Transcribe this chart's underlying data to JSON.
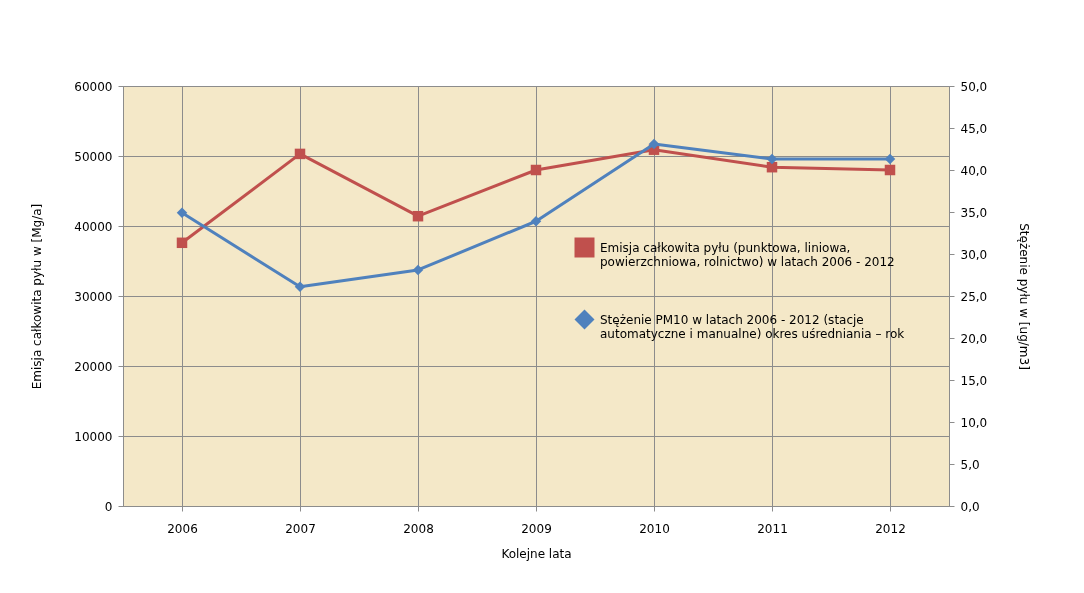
{
  "chart_data": {
    "type": "line",
    "xlabel": "Kolejne lata",
    "ylabel": "Emisja całkowita pyłu w [Mg/a]",
    "y2label": "Stężenie pyłu w  [ug/m3]",
    "categories": [
      "2006",
      "2007",
      "2008",
      "2009",
      "2010",
      "2011",
      "2012"
    ],
    "series": [
      {
        "name": "Emisja całkowita pyłu (punktowa,  liniowa,\npowierzchniowa, rolnictwo) w latach 2006 - 2012",
        "color": "#c0504d",
        "marker": "square",
        "values": [
          37600,
          50300,
          41400,
          48000,
          50900,
          48400,
          48000
        ]
      },
      {
        "name": "Stężenie PM10 w latach 2006 - 2012 (stacje\nautomatyczne  i manualne) okres uśredniania – rok",
        "color": "#4f81bd",
        "marker": "diamond",
        "axis": "y2",
        "values": [
          34.9,
          26.1,
          28.1,
          33.9,
          43.1,
          41.3,
          41.3
        ]
      }
    ],
    "ylim": [
      0,
      60000
    ],
    "yticks": [
      0,
      10000,
      20000,
      30000,
      40000,
      50000,
      60000
    ],
    "y2lim": [
      0,
      50
    ],
    "y2ticks": [
      {
        "value": 0,
        "label": "0,0"
      },
      {
        "value": 5,
        "label": "5,0"
      },
      {
        "value": 10,
        "label": "10,0"
      },
      {
        "value": 15,
        "label": "15,0"
      },
      {
        "value": 20,
        "label": "20,0"
      },
      {
        "value": 25,
        "label": "25,0"
      },
      {
        "value": 30,
        "label": "30,0"
      },
      {
        "value": 35,
        "label": "35,0"
      },
      {
        "value": 40,
        "label": "40,0"
      },
      {
        "value": 45,
        "label": "45,0"
      },
      {
        "value": 50,
        "label": "50,0"
      }
    ],
    "grid": true,
    "legend": "right",
    "line_style": "solid"
  }
}
